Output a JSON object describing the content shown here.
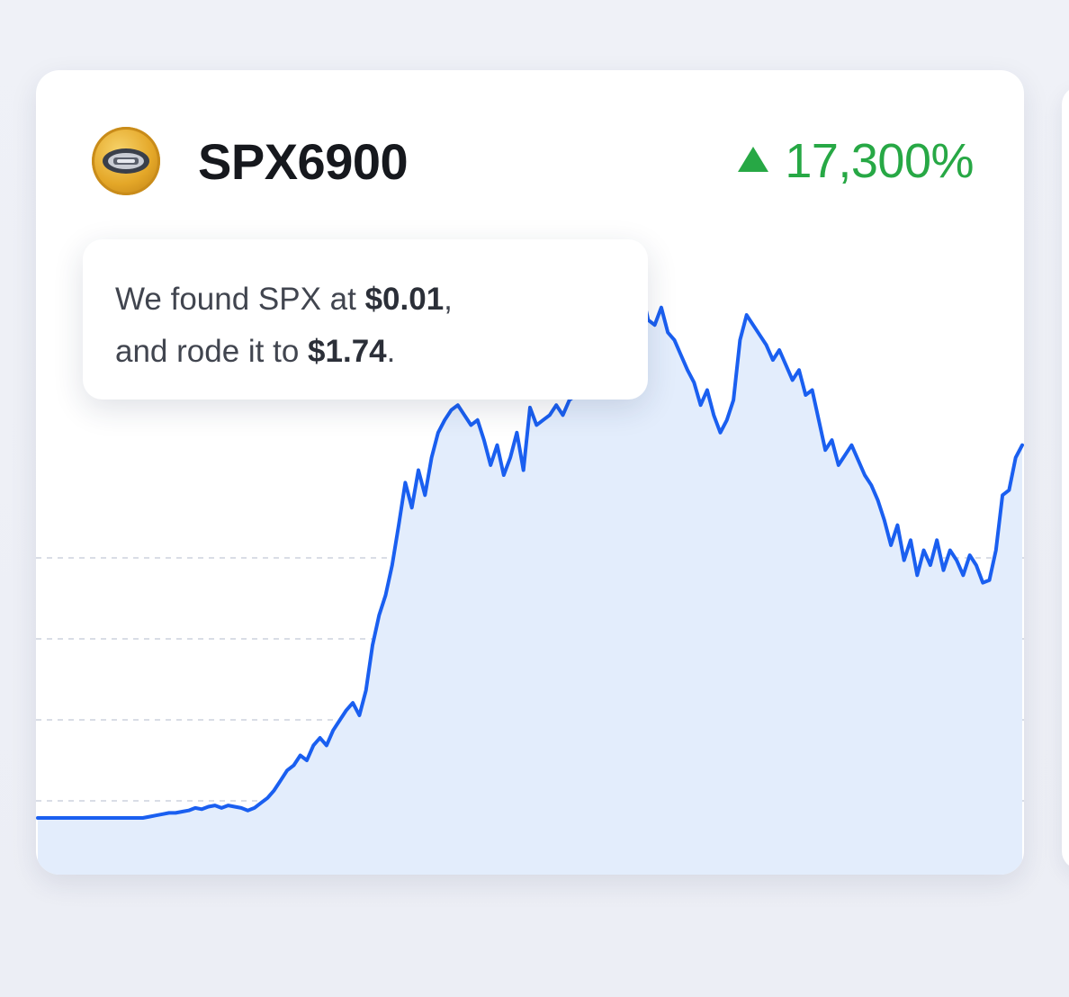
{
  "coin": {
    "name": "SPX6900",
    "icon": "spx-coin-logo-icon"
  },
  "change": {
    "direction": "up",
    "value": "17,300%",
    "color": "#27a845",
    "icon": "triangle-up-icon"
  },
  "callout": {
    "line1_prefix": "We found SPX at ",
    "line1_price": "$0.01",
    "line1_suffix": ",",
    "line2_prefix": "and rode it to ",
    "line2_price": "$1.74",
    "line2_suffix": "."
  },
  "colors": {
    "line": "#1a5ff0",
    "fill": "#e3edfc",
    "grid": "#d9dde6"
  },
  "chart_data": {
    "type": "area",
    "grid": "dashed horizontal",
    "y": [
      0.01,
      0.01,
      0.01,
      0.01,
      0.01,
      0.01,
      0.01,
      0.01,
      0.01,
      0.01,
      0.01,
      0.01,
      0.01,
      0.01,
      0.01,
      0.01,
      0.01,
      0.015,
      0.02,
      0.025,
      0.03,
      0.03,
      0.035,
      0.04,
      0.05,
      0.045,
      0.055,
      0.06,
      0.05,
      0.06,
      0.055,
      0.05,
      0.04,
      0.05,
      0.07,
      0.09,
      0.12,
      0.16,
      0.2,
      0.22,
      0.26,
      0.24,
      0.3,
      0.33,
      0.3,
      0.36,
      0.4,
      0.44,
      0.47,
      0.42,
      0.52,
      0.7,
      0.82,
      0.9,
      1.02,
      1.18,
      1.35,
      1.25,
      1.4,
      1.3,
      1.45,
      1.55,
      1.6,
      1.64,
      1.66,
      1.62,
      1.58,
      1.6,
      1.52,
      1.42,
      1.5,
      1.38,
      1.45,
      1.55,
      1.4,
      1.65,
      1.58,
      1.6,
      1.62,
      1.66,
      1.62,
      1.68,
      1.7,
      1.74,
      1.72,
      1.78,
      1.9,
      2.02,
      2.2,
      2.1,
      2.15,
      2.08,
      2.12,
      2.0,
      1.98,
      2.05,
      1.95,
      1.92,
      1.86,
      1.8,
      1.75,
      1.66,
      1.72,
      1.62,
      1.55,
      1.6,
      1.68,
      1.92,
      2.02,
      1.98,
      1.94,
      1.9,
      1.84,
      1.88,
      1.82,
      1.76,
      1.8,
      1.7,
      1.72,
      1.6,
      1.48,
      1.52,
      1.42,
      1.46,
      1.5,
      1.44,
      1.38,
      1.34,
      1.28,
      1.2,
      1.1,
      1.18,
      1.04,
      1.12,
      0.98,
      1.08,
      1.02,
      1.12,
      1.0,
      1.08,
      1.04,
      0.98,
      1.06,
      1.02,
      0.95,
      0.96,
      1.08,
      1.3,
      1.32,
      1.45,
      1.5
    ]
  }
}
